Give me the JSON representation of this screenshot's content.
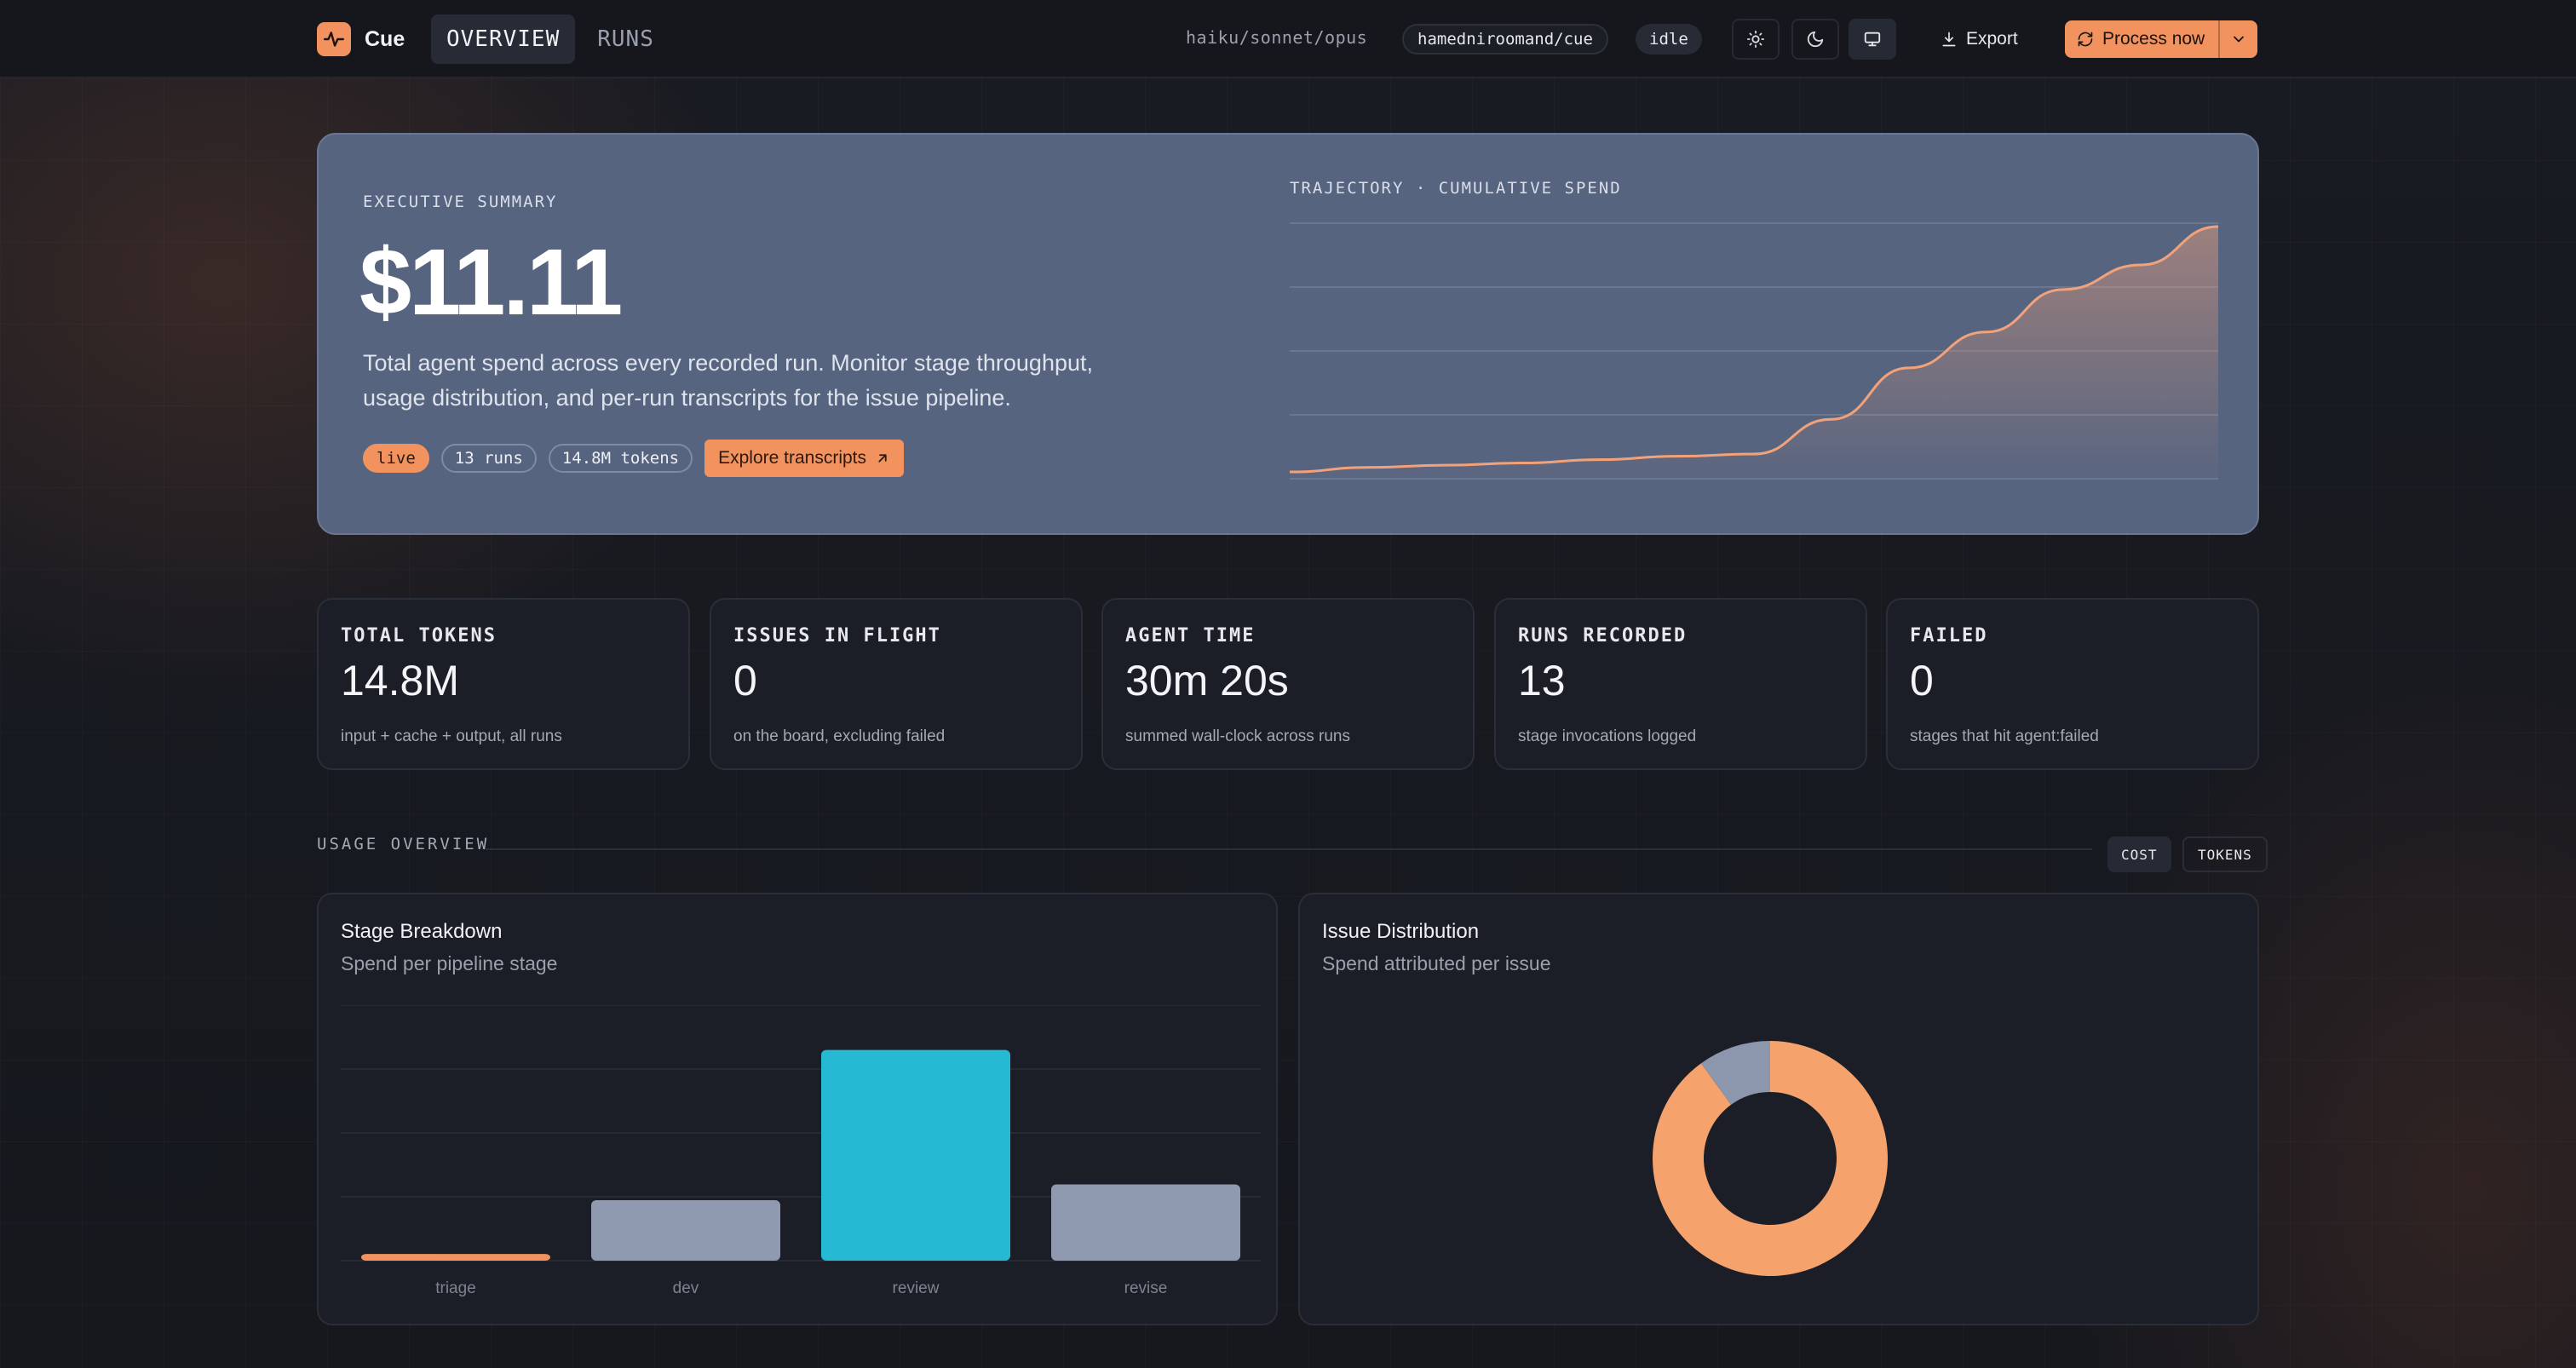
{
  "app": {
    "name": "Cue",
    "tabs": [
      {
        "label": "OVERVIEW",
        "active": true
      },
      {
        "label": "RUNS",
        "active": false
      }
    ],
    "model_path": "haiku/sonnet/opus",
    "repo": "hamedniroomand/cue",
    "status": "idle",
    "export_label": "Export",
    "process_label": "Process now",
    "accent_color": "#f2925f"
  },
  "icons": {
    "logo": "activity-pulse-icon",
    "light_mode": "sun-icon",
    "dark_mode": "moon-icon",
    "system_mode": "monitor-icon",
    "export": "download-icon",
    "process": "refresh-icon",
    "dropdown": "chevron-down-icon",
    "explore": "arrow-up-right-icon"
  },
  "hero": {
    "eyebrow": "EXECUTIVE SUMMARY",
    "amount": "$11.11",
    "description": "Total agent spend across every recorded run. Monitor stage throughput, usage distribution, and per-run transcripts for the issue pipeline.",
    "tags": [
      "live",
      "13 runs",
      "14.8M tokens"
    ],
    "explore_label": "Explore transcripts",
    "chart_label": "TRAJECTORY · CUMULATIVE SPEND"
  },
  "metrics": [
    {
      "label": "TOTAL TOKENS",
      "value": "14.8M",
      "sub": "input + cache + output, all runs"
    },
    {
      "label": "ISSUES IN FLIGHT",
      "value": "0",
      "sub": "on the board, excluding failed"
    },
    {
      "label": "AGENT TIME",
      "value": "30m 20s",
      "sub": "summed wall-clock across runs"
    },
    {
      "label": "RUNS RECORDED",
      "value": "13",
      "sub": "stage invocations logged"
    },
    {
      "label": "FAILED",
      "value": "0",
      "sub": "stages that hit agent:failed"
    }
  ],
  "usage": {
    "title": "USAGE OVERVIEW",
    "toggles": [
      "COST",
      "TOKENS"
    ],
    "active_toggle": "COST",
    "stage_panel": {
      "title": "Stage Breakdown",
      "subtitle": "Spend per pipeline stage"
    },
    "issue_panel": {
      "title": "Issue Distribution",
      "subtitle": "Spend attributed per issue"
    }
  },
  "chart_data": [
    {
      "type": "area",
      "title": "TRAJECTORY · CUMULATIVE SPEND",
      "x": [
        1,
        2,
        3,
        4,
        5,
        6,
        7,
        8,
        9,
        10,
        11,
        12,
        13
      ],
      "values": [
        0.15,
        0.35,
        0.45,
        0.55,
        0.7,
        0.85,
        0.95,
        2.5,
        4.8,
        6.4,
        8.3,
        9.4,
        11.11
      ],
      "grid": true,
      "color": "#f2a27a"
    },
    {
      "type": "bar",
      "title": "Stage Breakdown",
      "categories": [
        "triage",
        "dev",
        "review",
        "revise"
      ],
      "values": [
        0.15,
        1.35,
        4.7,
        1.7
      ],
      "ylim": [
        0,
        5.7
      ],
      "colors": [
        "#f2925f",
        "#8f9ab0",
        "#25b9d3",
        "#8f9ab0"
      ],
      "grid": true
    },
    {
      "type": "pie",
      "title": "Issue Distribution",
      "values": [
        0.9,
        0.1
      ],
      "colors": [
        "#f5a26d",
        "#8c97ad"
      ]
    }
  ]
}
